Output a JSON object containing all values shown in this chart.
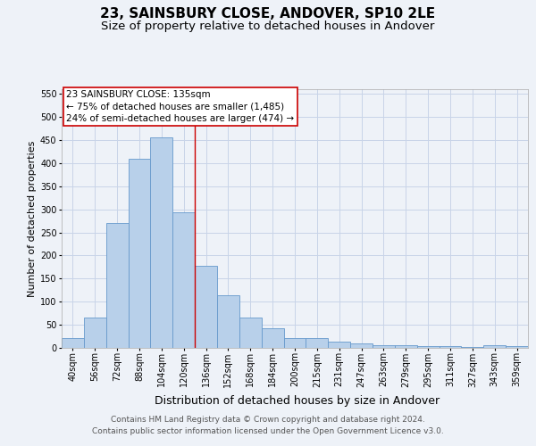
{
  "title": "23, SAINSBURY CLOSE, ANDOVER, SP10 2LE",
  "subtitle": "Size of property relative to detached houses in Andover",
  "xlabel": "Distribution of detached houses by size in Andover",
  "ylabel": "Number of detached properties",
  "footer_line1": "Contains HM Land Registry data © Crown copyright and database right 2024.",
  "footer_line2": "Contains public sector information licensed under the Open Government Licence v3.0.",
  "bin_labels": [
    "40sqm",
    "56sqm",
    "72sqm",
    "88sqm",
    "104sqm",
    "120sqm",
    "136sqm",
    "152sqm",
    "168sqm",
    "184sqm",
    "200sqm",
    "215sqm",
    "231sqm",
    "247sqm",
    "263sqm",
    "279sqm",
    "295sqm",
    "311sqm",
    "327sqm",
    "343sqm",
    "359sqm"
  ],
  "bar_values": [
    22,
    65,
    270,
    410,
    455,
    293,
    178,
    113,
    65,
    43,
    22,
    22,
    14,
    10,
    6,
    6,
    4,
    3,
    2,
    5,
    3
  ],
  "bar_color": "#b8d0ea",
  "bar_edge_color": "#6699cc",
  "grid_color": "#c8d4e8",
  "background_color": "#eef2f8",
  "property_line_x": 5.5,
  "annotation_text_line1": "23 SAINSBURY CLOSE: 135sqm",
  "annotation_text_line2": "← 75% of detached houses are smaller (1,485)",
  "annotation_text_line3": "24% of semi-detached houses are larger (474) →",
  "annotation_box_color": "#ffffff",
  "annotation_box_edge_color": "#cc0000",
  "ylim": [
    0,
    560
  ],
  "yticks": [
    0,
    50,
    100,
    150,
    200,
    250,
    300,
    350,
    400,
    450,
    500,
    550
  ],
  "title_fontsize": 11,
  "subtitle_fontsize": 9.5,
  "xlabel_fontsize": 9,
  "ylabel_fontsize": 8,
  "tick_fontsize": 7,
  "annotation_fontsize": 7.5,
  "footer_fontsize": 6.5
}
